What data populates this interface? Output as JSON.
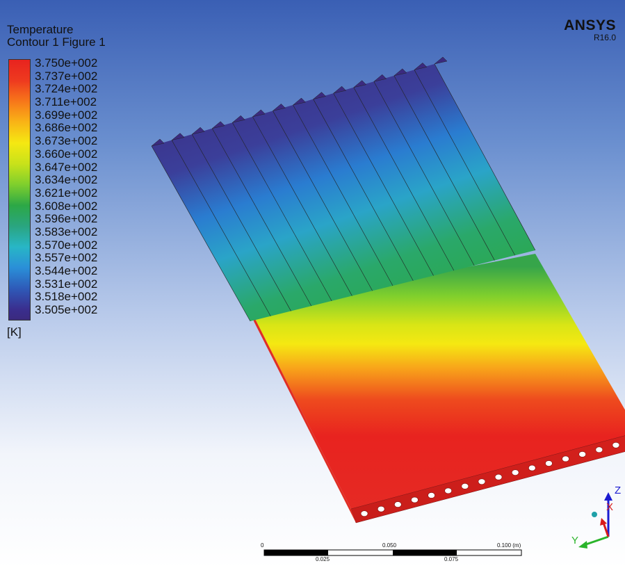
{
  "legend": {
    "title_line1": "Temperature",
    "title_line2": "Contour 1 Figure 1",
    "labels": [
      "3.750e+002",
      "3.737e+002",
      "3.724e+002",
      "3.711e+002",
      "3.699e+002",
      "3.686e+002",
      "3.673e+002",
      "3.660e+002",
      "3.647e+002",
      "3.634e+002",
      "3.621e+002",
      "3.608e+002",
      "3.596e+002",
      "3.583e+002",
      "3.570e+002",
      "3.557e+002",
      "3.544e+002",
      "3.531e+002",
      "3.518e+002",
      "3.505e+002"
    ],
    "unit": "[K]"
  },
  "brand": {
    "name": "ANSYS",
    "version": "R16.0"
  },
  "scale": {
    "top_labels": [
      "0",
      "0.050",
      "0.100 (m)"
    ],
    "bottom_labels": [
      "0.025",
      "0.075"
    ]
  },
  "axes": {
    "z": "Z",
    "x": "X",
    "y": "Y"
  },
  "colors": {
    "hot": "#e8231f",
    "cold": "#3b2a7f",
    "mid": "#2ca846",
    "yellow": "#f5e812"
  }
}
